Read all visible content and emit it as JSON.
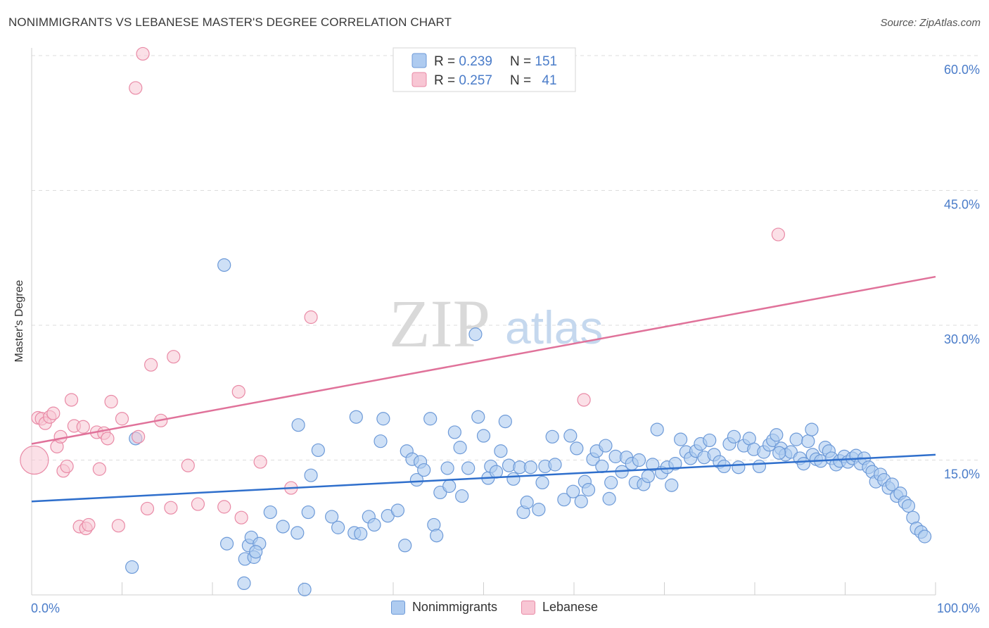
{
  "header": {
    "title": "NONIMMIGRANTS VS LEBANESE MASTER'S DEGREE CORRELATION CHART",
    "source": "Source: ZipAtlas.com"
  },
  "watermark": {
    "zip": "ZIP",
    "atlas": "atlas"
  },
  "colors": {
    "blue_fill": "#aecbf0",
    "blue_stroke": "#6d9ad8",
    "blue_line": "#2f6fcc",
    "pink_fill": "#f8c6d4",
    "pink_stroke": "#e98aa6",
    "pink_line": "#e0729a",
    "tick_text": "#4a7cc9",
    "grid": "#dddddd"
  },
  "legend": {
    "entries": [
      {
        "r_label": "R = ",
        "r_value": "0.239",
        "n_label": "N = ",
        "n_value": "151"
      },
      {
        "r_label": "R = ",
        "r_value": "0.257",
        "n_label": "N = ",
        "n_value": "41"
      }
    ]
  },
  "bottom_legend": {
    "series1": "Nonimmigrants",
    "series2": "Lebanese"
  },
  "chart_data": {
    "type": "scatter",
    "title": "NONIMMIGRANTS VS LEBANESE MASTER'S DEGREE CORRELATION CHART",
    "xlabel": "",
    "ylabel": "Master's Degree",
    "xlim": [
      0,
      100
    ],
    "ylim": [
      0,
      60
    ],
    "x_tick_labels": [
      "0.0%",
      "100.0%"
    ],
    "y_ticks": [
      15,
      30,
      45,
      60
    ],
    "y_tick_labels": [
      "15.0%",
      "30.0%",
      "45.0%",
      "60.0%"
    ],
    "grid": "horizontal dashed",
    "legend_position": "top-center",
    "series": [
      {
        "name": "Nonimmigrants",
        "R": 0.239,
        "N": 151,
        "trend": {
          "x": [
            0,
            100
          ],
          "y": [
            10.4,
            15.6
          ]
        },
        "points": [
          [
            11.1,
            3.1
          ],
          [
            11.5,
            17.4
          ],
          [
            21.3,
            36.7
          ],
          [
            21.6,
            5.7
          ],
          [
            23.5,
            1.3
          ],
          [
            23.6,
            4.0
          ],
          [
            24.0,
            5.5
          ],
          [
            24.3,
            6.4
          ],
          [
            24.6,
            4.2
          ],
          [
            25.2,
            5.7
          ],
          [
            26.4,
            9.2
          ],
          [
            27.8,
            7.6
          ],
          [
            29.4,
            6.9
          ],
          [
            29.5,
            18.9
          ],
          [
            30.2,
            0.6
          ],
          [
            30.6,
            9.2
          ],
          [
            30.9,
            13.3
          ],
          [
            31.7,
            16.1
          ],
          [
            33.2,
            8.7
          ],
          [
            33.9,
            7.5
          ],
          [
            35.7,
            6.9
          ],
          [
            35.9,
            19.8
          ],
          [
            36.4,
            6.8
          ],
          [
            37.3,
            8.7
          ],
          [
            37.9,
            7.8
          ],
          [
            38.6,
            17.1
          ],
          [
            38.9,
            19.6
          ],
          [
            39.4,
            8.8
          ],
          [
            40.5,
            9.4
          ],
          [
            41.3,
            5.5
          ],
          [
            41.5,
            16.0
          ],
          [
            42.1,
            15.1
          ],
          [
            42.6,
            12.8
          ],
          [
            43.0,
            14.8
          ],
          [
            43.4,
            13.9
          ],
          [
            44.1,
            19.6
          ],
          [
            44.5,
            7.8
          ],
          [
            44.8,
            6.6
          ],
          [
            45.2,
            11.4
          ],
          [
            46.0,
            14.1
          ],
          [
            46.2,
            12.1
          ],
          [
            46.8,
            18.1
          ],
          [
            47.4,
            16.4
          ],
          [
            47.6,
            11.0
          ],
          [
            48.3,
            14.1
          ],
          [
            49.1,
            29.0
          ],
          [
            49.4,
            19.8
          ],
          [
            50.0,
            17.7
          ],
          [
            50.5,
            13.0
          ],
          [
            50.8,
            14.3
          ],
          [
            51.4,
            13.7
          ],
          [
            51.9,
            16.0
          ],
          [
            52.4,
            19.3
          ],
          [
            52.8,
            14.4
          ],
          [
            53.3,
            12.9
          ],
          [
            54.0,
            14.2
          ],
          [
            54.4,
            9.2
          ],
          [
            54.8,
            10.3
          ],
          [
            55.2,
            14.2
          ],
          [
            56.1,
            9.5
          ],
          [
            56.5,
            12.5
          ],
          [
            56.8,
            14.3
          ],
          [
            57.6,
            17.6
          ],
          [
            57.9,
            14.5
          ],
          [
            58.9,
            10.6
          ],
          [
            59.6,
            17.7
          ],
          [
            59.9,
            11.5
          ],
          [
            60.3,
            16.3
          ],
          [
            60.8,
            10.4
          ],
          [
            61.2,
            12.6
          ],
          [
            61.6,
            11.7
          ],
          [
            62.1,
            15.1
          ],
          [
            62.5,
            16.0
          ],
          [
            63.1,
            14.3
          ],
          [
            63.5,
            16.6
          ],
          [
            64.1,
            12.5
          ],
          [
            64.6,
            15.4
          ],
          [
            65.3,
            13.7
          ],
          [
            65.8,
            15.3
          ],
          [
            66.4,
            14.6
          ],
          [
            66.8,
            12.5
          ],
          [
            67.2,
            15.0
          ],
          [
            67.7,
            12.3
          ],
          [
            68.2,
            13.2
          ],
          [
            68.7,
            14.5
          ],
          [
            69.2,
            18.4
          ],
          [
            69.7,
            13.6
          ],
          [
            70.3,
            14.2
          ],
          [
            70.8,
            12.2
          ],
          [
            71.2,
            14.6
          ],
          [
            71.8,
            17.3
          ],
          [
            72.4,
            15.9
          ],
          [
            72.9,
            15.2
          ],
          [
            73.5,
            16.0
          ],
          [
            74.0,
            16.8
          ],
          [
            74.4,
            15.3
          ],
          [
            75.0,
            17.2
          ],
          [
            75.5,
            15.6
          ],
          [
            76.1,
            14.8
          ],
          [
            76.6,
            14.3
          ],
          [
            77.2,
            16.8
          ],
          [
            77.7,
            17.6
          ],
          [
            78.2,
            14.2
          ],
          [
            78.8,
            16.6
          ],
          [
            79.4,
            17.4
          ],
          [
            79.9,
            16.2
          ],
          [
            80.5,
            14.3
          ],
          [
            81.0,
            15.9
          ],
          [
            81.6,
            16.7
          ],
          [
            82.0,
            17.2
          ],
          [
            82.4,
            17.8
          ],
          [
            82.9,
            16.3
          ],
          [
            83.4,
            15.6
          ],
          [
            84.0,
            15.9
          ],
          [
            84.6,
            17.3
          ],
          [
            85.0,
            15.2
          ],
          [
            85.4,
            14.6
          ],
          [
            85.9,
            17.1
          ],
          [
            86.4,
            15.6
          ],
          [
            86.8,
            15.1
          ],
          [
            87.3,
            14.9
          ],
          [
            87.8,
            16.4
          ],
          [
            88.2,
            16.0
          ],
          [
            88.5,
            15.2
          ],
          [
            89.0,
            14.5
          ],
          [
            89.4,
            14.9
          ],
          [
            89.9,
            15.4
          ],
          [
            90.3,
            14.8
          ],
          [
            90.8,
            15.2
          ],
          [
            91.2,
            15.5
          ],
          [
            91.7,
            14.6
          ],
          [
            92.1,
            15.2
          ],
          [
            92.6,
            14.2
          ],
          [
            93.0,
            13.7
          ],
          [
            93.4,
            12.6
          ],
          [
            93.9,
            13.4
          ],
          [
            94.3,
            12.8
          ],
          [
            94.8,
            11.9
          ],
          [
            95.2,
            12.3
          ],
          [
            95.7,
            11.0
          ],
          [
            96.1,
            11.3
          ],
          [
            96.6,
            10.3
          ],
          [
            97.0,
            9.9
          ],
          [
            97.5,
            8.6
          ],
          [
            97.9,
            7.4
          ],
          [
            98.4,
            7.0
          ],
          [
            98.8,
            6.5
          ],
          [
            86.3,
            18.4
          ],
          [
            82.7,
            15.8
          ],
          [
            63.9,
            10.7
          ],
          [
            24.8,
            4.8
          ]
        ]
      },
      {
        "name": "Lebanese",
        "R": 0.257,
        "N": 41,
        "trend": {
          "x": [
            0,
            100
          ],
          "y": [
            16.8,
            35.4
          ]
        },
        "points": [
          [
            0.3,
            15.0
          ],
          [
            0.7,
            19.7
          ],
          [
            1.1,
            19.6
          ],
          [
            1.5,
            19.1
          ],
          [
            2.0,
            19.8
          ],
          [
            2.4,
            20.2
          ],
          [
            2.8,
            16.5
          ],
          [
            3.2,
            17.6
          ],
          [
            3.5,
            13.8
          ],
          [
            3.9,
            14.3
          ],
          [
            4.4,
            21.7
          ],
          [
            4.7,
            18.8
          ],
          [
            5.3,
            7.6
          ],
          [
            5.7,
            18.7
          ],
          [
            6.0,
            7.4
          ],
          [
            6.3,
            7.8
          ],
          [
            7.2,
            18.1
          ],
          [
            7.5,
            14.0
          ],
          [
            8.0,
            18.0
          ],
          [
            8.4,
            17.4
          ],
          [
            8.8,
            21.5
          ],
          [
            9.6,
            7.7
          ],
          [
            10.0,
            19.6
          ],
          [
            11.5,
            56.4
          ],
          [
            11.8,
            17.6
          ],
          [
            12.3,
            60.2
          ],
          [
            12.8,
            9.6
          ],
          [
            13.2,
            25.6
          ],
          [
            14.3,
            19.4
          ],
          [
            15.4,
            9.7
          ],
          [
            15.7,
            26.5
          ],
          [
            17.3,
            14.4
          ],
          [
            18.4,
            10.1
          ],
          [
            21.3,
            9.8
          ],
          [
            22.9,
            22.6
          ],
          [
            23.2,
            8.6
          ],
          [
            25.3,
            14.8
          ],
          [
            28.7,
            11.9
          ],
          [
            30.9,
            30.9
          ],
          [
            61.1,
            21.7
          ],
          [
            82.6,
            40.1
          ]
        ]
      }
    ]
  }
}
